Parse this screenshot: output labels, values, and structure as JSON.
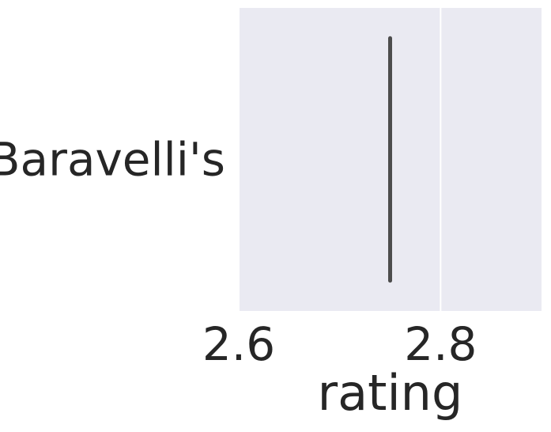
{
  "chart_data": {
    "type": "box",
    "orientation": "horizontal",
    "categories": [
      "Baravelli's"
    ],
    "series": [
      {
        "category": "Baravelli's",
        "value": 2.75
      }
    ],
    "xlabel": "rating",
    "ylabel": "",
    "xlim": [
      2.6,
      2.9
    ],
    "xticks": [
      2.6,
      2.8
    ],
    "xtick_labels": [
      "2.6",
      "2.8"
    ],
    "grid": true,
    "colors": {
      "plot_background": "#EAEAF2",
      "grid": "#FFFFFF",
      "mark": "#4D4D4D",
      "text": "#262626"
    }
  }
}
